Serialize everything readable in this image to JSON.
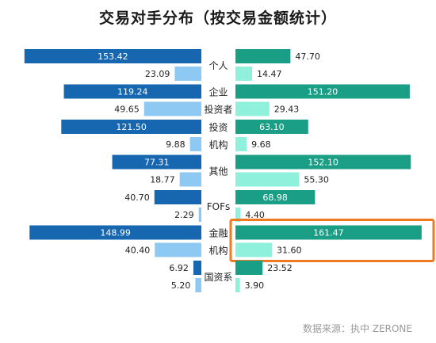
{
  "chart_data": {
    "type": "bar",
    "title": "交易对手分布（按交易金额统计）",
    "source": "数据来源：执中 ZERONE",
    "categories": [
      "个人",
      "企业",
      "投资者",
      "投资",
      "机构",
      "其他",
      "FOFs",
      "金融",
      "机构",
      "国资系"
    ],
    "groups": [
      {
        "label": "个人",
        "left": [
          153.42,
          23.09
        ],
        "right": [
          47.7,
          14.47
        ]
      },
      {
        "label": "企业",
        "left": [
          119.24,
          49.65
        ],
        "right": [
          151.2,
          29.43
        ],
        "label2": "投资者"
      },
      {
        "label": "投资",
        "left": [
          121.5,
          9.88
        ],
        "right": [
          63.1,
          9.68
        ],
        "label2": "机构"
      },
      {
        "label": "其他",
        "left": [
          77.31,
          18.77
        ],
        "right": [
          152.1,
          55.3
        ]
      },
      {
        "label": "FOFs",
        "left": [
          40.7,
          2.29
        ],
        "right": [
          68.98,
          4.4
        ]
      },
      {
        "label": "金融",
        "left": [
          148.99,
          40.4
        ],
        "right": [
          161.47,
          31.6
        ],
        "label2": "机构",
        "highlight": true
      },
      {
        "label": "国资系",
        "left": [
          6.92,
          5.2
        ],
        "right": [
          23.52,
          3.9
        ]
      }
    ],
    "colors": {
      "left_dark": "#1767b0",
      "left_light": "#8ec9f3",
      "right_dark": "#1a9e86",
      "right_light": "#8ff0dc",
      "highlight": "#f07a22"
    },
    "xlim": [
      0,
      165
    ]
  }
}
